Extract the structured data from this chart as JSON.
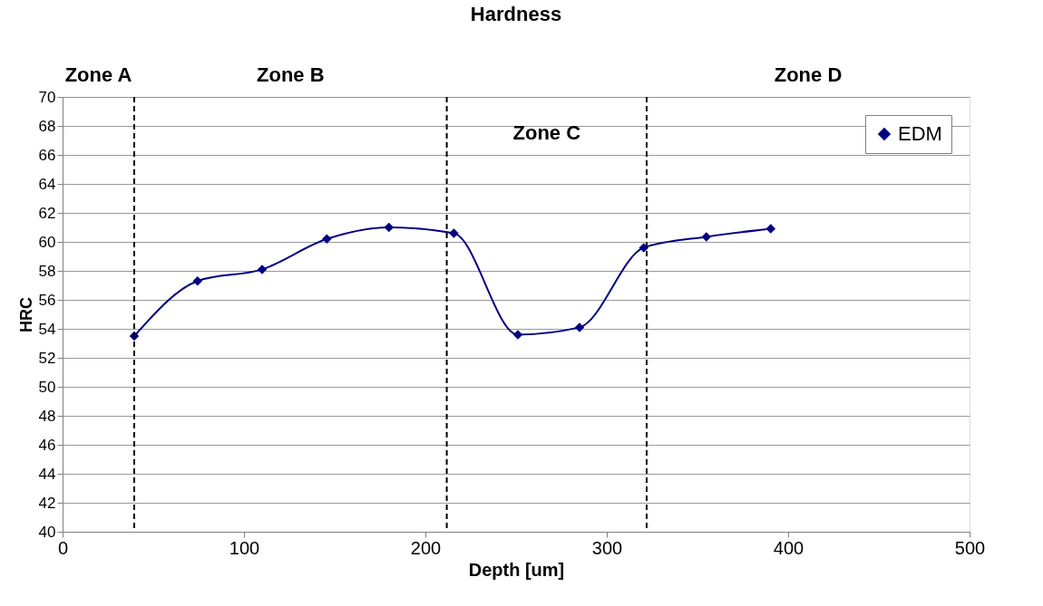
{
  "chart_data": {
    "type": "line",
    "title": "Hardness",
    "xlabel": "Depth [um]",
    "ylabel": "HRC",
    "x": [
      39.5,
      74.4,
      110,
      145.7,
      179.9,
      215.7,
      251,
      285,
      320.4,
      354.9,
      390.4
    ],
    "series": [
      {
        "name": "EDM",
        "color": "#000080",
        "values": [
          53.5,
          57.3,
          58.1,
          60.2,
          61.0,
          60.6,
          53.6,
          54.1,
          59.6,
          60.35,
          60.9
        ]
      }
    ],
    "xlim": [
      0,
      500
    ],
    "xticks": [
      0,
      100,
      200,
      300,
      400,
      500
    ],
    "ylim": [
      40,
      70
    ],
    "yticks": [
      40,
      42,
      44,
      46,
      48,
      50,
      52,
      54,
      56,
      58,
      60,
      62,
      64,
      66,
      68,
      70
    ],
    "grid": "y",
    "legend": "top right",
    "marker": "diamond",
    "line_style": "solid",
    "ref_lines": [
      {
        "axis": "x",
        "value": 39.5,
        "line_style": "dashed",
        "color": "#000000"
      },
      {
        "axis": "x",
        "value": 211.8,
        "line_style": "dashed",
        "color": "#000000"
      },
      {
        "axis": "x",
        "value": 322,
        "line_style": "dashed",
        "color": "#000000"
      }
    ],
    "annotations": [
      "Zone A",
      "Zone B",
      "Zone C",
      "Zone D"
    ]
  }
}
